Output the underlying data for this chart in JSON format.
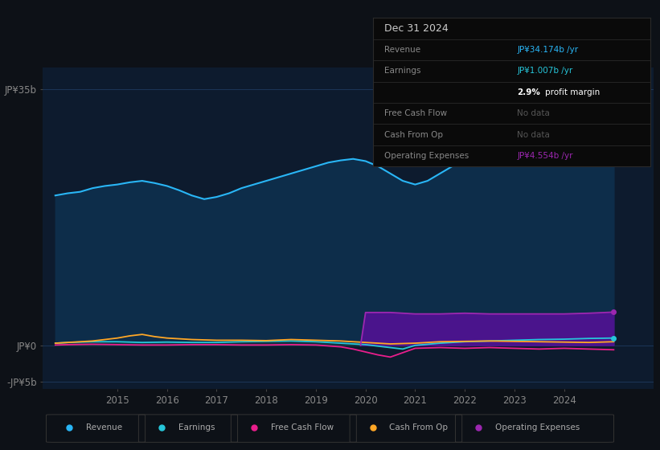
{
  "background_color": "#0d1117",
  "plot_bg_color": "#0d1b2e",
  "ylim": [
    -6,
    38
  ],
  "ytick_positions": [
    -5,
    0,
    35
  ],
  "ytick_labels": [
    "-JP¥5b",
    "JP¥0",
    "JP¥35b"
  ],
  "xticks": [
    2015,
    2016,
    2017,
    2018,
    2019,
    2020,
    2021,
    2022,
    2023,
    2024
  ],
  "xlim": [
    2013.5,
    2025.8
  ],
  "revenue_color": "#29b6f6",
  "earnings_color": "#26c6da",
  "fcf_color": "#e91e8c",
  "cashfromop_color": "#ffa726",
  "opex_color": "#9c27b0",
  "opex_fill_color": "#4a148c",
  "revenue_fill_color": "#0d2d4a",
  "earnings_fill_color": "#1a3a3a",
  "legend_items": [
    {
      "label": "Revenue",
      "color": "#29b6f6"
    },
    {
      "label": "Earnings",
      "color": "#26c6da"
    },
    {
      "label": "Free Cash Flow",
      "color": "#e91e8c"
    },
    {
      "label": "Cash From Op",
      "color": "#ffa726"
    },
    {
      "label": "Operating Expenses",
      "color": "#9c27b0"
    }
  ],
  "info_box": {
    "title": "Dec 31 2024",
    "rows": [
      {
        "label": "Revenue",
        "value": "JP¥34.174b /yr",
        "value_color": "#29b6f6",
        "no_data": false
      },
      {
        "label": "Earnings",
        "value": "JP¥1.007b /yr",
        "value_color": "#26c6da",
        "no_data": false
      },
      {
        "label": "",
        "value": "2.9% profit margin",
        "value_color": "#ffffff",
        "no_data": false,
        "bold_pct": true
      },
      {
        "label": "Free Cash Flow",
        "value": "No data",
        "value_color": "#555555",
        "no_data": true
      },
      {
        "label": "Cash From Op",
        "value": "No data",
        "value_color": "#555555",
        "no_data": true
      },
      {
        "label": "Operating Expenses",
        "value": "JP¥4.554b /yr",
        "value_color": "#9c27b0",
        "no_data": false
      }
    ]
  },
  "revenue": {
    "x": [
      2013.75,
      2014.0,
      2014.25,
      2014.5,
      2014.75,
      2015.0,
      2015.25,
      2015.5,
      2015.75,
      2016.0,
      2016.25,
      2016.5,
      2016.75,
      2017.0,
      2017.25,
      2017.5,
      2017.75,
      2018.0,
      2018.25,
      2018.5,
      2018.75,
      2019.0,
      2019.25,
      2019.5,
      2019.75,
      2020.0,
      2020.25,
      2020.5,
      2020.75,
      2021.0,
      2021.25,
      2021.5,
      2021.75,
      2022.0,
      2022.25,
      2022.5,
      2022.75,
      2023.0,
      2023.25,
      2023.5,
      2023.75,
      2024.0,
      2024.25,
      2024.5,
      2024.75,
      2025.0
    ],
    "y": [
      20.5,
      20.8,
      21.0,
      21.5,
      21.8,
      22.0,
      22.3,
      22.5,
      22.2,
      21.8,
      21.2,
      20.5,
      20.0,
      20.3,
      20.8,
      21.5,
      22.0,
      22.5,
      23.0,
      23.5,
      24.0,
      24.5,
      25.0,
      25.3,
      25.5,
      25.2,
      24.5,
      23.5,
      22.5,
      22.0,
      22.5,
      23.5,
      24.5,
      25.2,
      25.8,
      26.2,
      26.5,
      27.0,
      27.8,
      29.0,
      30.5,
      31.5,
      32.5,
      33.5,
      34.0,
      34.5
    ]
  },
  "earnings": {
    "x": [
      2013.75,
      2014.0,
      2014.5,
      2015.0,
      2015.5,
      2016.0,
      2016.5,
      2017.0,
      2017.5,
      2018.0,
      2018.5,
      2019.0,
      2019.5,
      2020.0,
      2020.25,
      2020.5,
      2020.75,
      2021.0,
      2021.5,
      2022.0,
      2022.5,
      2023.0,
      2023.5,
      2024.0,
      2024.5,
      2025.0
    ],
    "y": [
      0.3,
      0.4,
      0.5,
      0.5,
      0.4,
      0.45,
      0.4,
      0.4,
      0.5,
      0.55,
      0.6,
      0.5,
      0.3,
      0.1,
      -0.1,
      -0.3,
      -0.5,
      0.0,
      0.3,
      0.5,
      0.6,
      0.7,
      0.8,
      0.85,
      0.95,
      1.0
    ]
  },
  "fcf": {
    "x": [
      2013.75,
      2014.0,
      2014.5,
      2015.0,
      2015.5,
      2016.0,
      2016.5,
      2017.0,
      2017.5,
      2018.0,
      2018.5,
      2019.0,
      2019.5,
      2019.75,
      2020.0,
      2020.25,
      2020.5,
      2020.75,
      2021.0,
      2021.5,
      2022.0,
      2022.5,
      2023.0,
      2023.5,
      2024.0,
      2024.5,
      2025.0
    ],
    "y": [
      0.05,
      0.1,
      0.15,
      0.1,
      0.05,
      0.05,
      0.1,
      0.1,
      0.05,
      0.05,
      0.1,
      0.05,
      -0.2,
      -0.5,
      -0.9,
      -1.3,
      -1.6,
      -1.0,
      -0.4,
      -0.3,
      -0.4,
      -0.3,
      -0.4,
      -0.5,
      -0.4,
      -0.5,
      -0.6
    ]
  },
  "cashfromop": {
    "x": [
      2013.75,
      2014.0,
      2014.5,
      2015.0,
      2015.25,
      2015.5,
      2015.75,
      2016.0,
      2016.5,
      2017.0,
      2017.5,
      2018.0,
      2018.5,
      2019.0,
      2019.5,
      2020.0,
      2020.5,
      2021.0,
      2021.5,
      2022.0,
      2022.5,
      2023.0,
      2023.5,
      2024.0,
      2024.5,
      2025.0
    ],
    "y": [
      0.3,
      0.4,
      0.6,
      1.0,
      1.3,
      1.5,
      1.2,
      1.0,
      0.8,
      0.7,
      0.7,
      0.65,
      0.8,
      0.7,
      0.6,
      0.4,
      0.2,
      0.3,
      0.5,
      0.55,
      0.6,
      0.55,
      0.5,
      0.45,
      0.4,
      0.5
    ]
  },
  "opex": {
    "x": [
      2019.9,
      2020.0,
      2020.25,
      2020.5,
      2020.75,
      2021.0,
      2021.5,
      2022.0,
      2022.5,
      2023.0,
      2023.5,
      2024.0,
      2024.5,
      2025.0
    ],
    "y": [
      0.0,
      4.5,
      4.5,
      4.5,
      4.4,
      4.3,
      4.3,
      4.4,
      4.3,
      4.3,
      4.3,
      4.3,
      4.4,
      4.55
    ]
  }
}
